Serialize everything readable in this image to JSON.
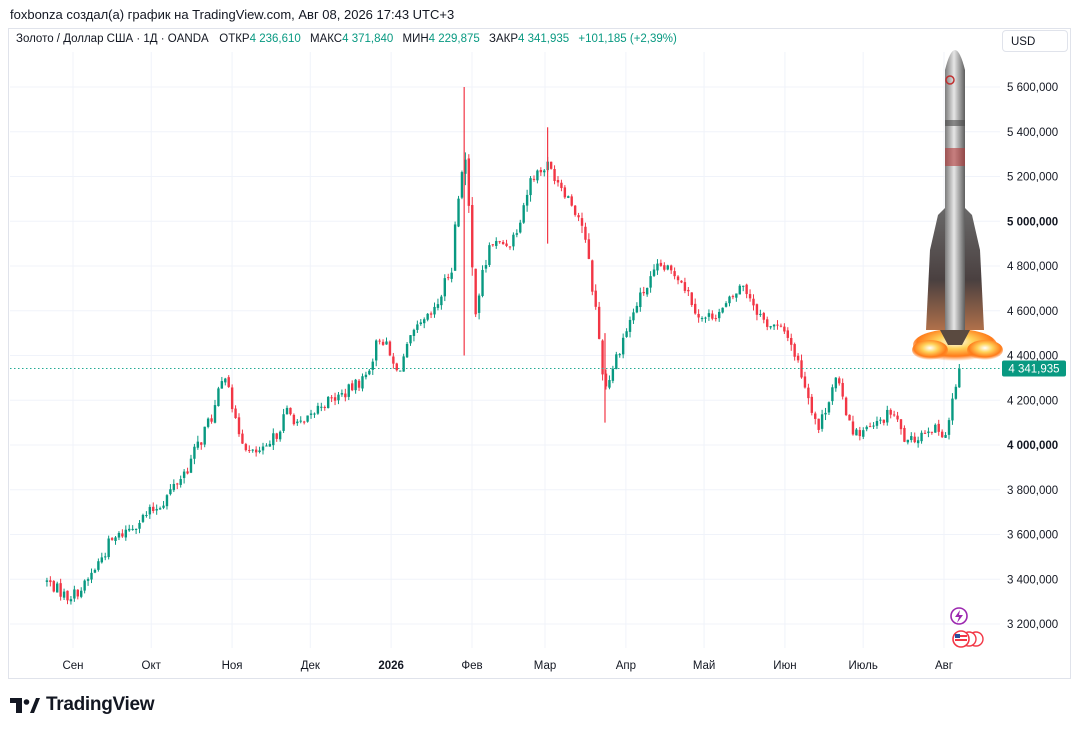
{
  "header": {
    "caption": "foxbonza создал(а) график на TradingView.com, Авг 08, 2026 17:43 UTC+3"
  },
  "legend": {
    "symbol": "Золото / Доллар США · 1Д · OANDA",
    "open_label": "ОТКР",
    "open": "4 236,610",
    "high_label": "МАКС",
    "high": "4 371,840",
    "low_label": "МИН",
    "low": "4 229,875",
    "close_label": "ЗАКР",
    "close": "4 341,935",
    "change": "+101,185 (+2,39%)"
  },
  "currency": "USD",
  "last_price_label": "4 341,935",
  "footer": {
    "brand": "TradingView"
  },
  "colors": {
    "up": "#089981",
    "down": "#f23645",
    "grid": "#f0f3fa",
    "last_line": "#22ab94"
  },
  "chart_data": {
    "type": "candlestick",
    "y_axis": {
      "ticks": [
        3200000,
        3400000,
        3600000,
        3800000,
        4000000,
        4200000,
        4400000,
        4600000,
        4800000,
        5000000,
        5200000,
        5400000,
        5600000
      ],
      "tick_labels": [
        "3 200,000",
        "3 400,000",
        "3 600,000",
        "3 800,000",
        "4 000,000",
        "4 200,000",
        "4 400,000",
        "4 600,000",
        "4 800,000",
        "5 000,000",
        "5 200,000",
        "5 400,000",
        "5 600,000"
      ],
      "bold_ticks": [
        4000000,
        5000000
      ],
      "range": [
        3050000,
        5740000
      ]
    },
    "x_axis": {
      "labels": [
        "Сен",
        "Окт",
        "Ноя",
        "Дек",
        "2026",
        "Фев",
        "Мар",
        "Апр",
        "Май",
        "Июн",
        "Июль",
        "Авг"
      ],
      "bold_labels": [
        "2026"
      ]
    },
    "last_price": 4341935,
    "series_close_path": [
      [
        "2025-08-22",
        3390000
      ],
      [
        "2025-08-30",
        3320000
      ],
      [
        "2025-09-05",
        3360000
      ],
      [
        "2025-09-15",
        3560000
      ],
      [
        "2025-09-25",
        3650000
      ],
      [
        "2025-10-05",
        3740000
      ],
      [
        "2025-10-15",
        3900000
      ],
      [
        "2025-10-25",
        4150000
      ],
      [
        "2025-10-30",
        4350000
      ],
      [
        "2025-11-02",
        4100000
      ],
      [
        "2025-11-08",
        3960000
      ],
      [
        "2025-11-15",
        3980000
      ],
      [
        "2025-11-22",
        4150000
      ],
      [
        "2025-11-28",
        4080000
      ],
      [
        "2025-12-05",
        4180000
      ],
      [
        "2025-12-14",
        4230000
      ],
      [
        "2025-12-22",
        4300000
      ],
      [
        "2025-12-28",
        4500000
      ],
      [
        "2026-01-03",
        4320000
      ],
      [
        "2026-01-10",
        4500000
      ],
      [
        "2026-01-18",
        4600000
      ],
      [
        "2026-01-24",
        4800000
      ],
      [
        "2026-01-29",
        5350000
      ],
      [
        "2026-02-02",
        4600000
      ],
      [
        "2026-02-08",
        4900000
      ],
      [
        "2026-02-16",
        4900000
      ],
      [
        "2026-02-24",
        5200000
      ],
      [
        "2026-03-02",
        5250000
      ],
      [
        "2026-03-08",
        5150000
      ],
      [
        "2026-03-15",
        5000000
      ],
      [
        "2026-03-20",
        4650000
      ],
      [
        "2026-03-24",
        4250000
      ],
      [
        "2026-03-30",
        4450000
      ],
      [
        "2026-04-06",
        4650000
      ],
      [
        "2026-04-14",
        4800000
      ],
      [
        "2026-04-22",
        4750000
      ],
      [
        "2026-04-30",
        4560000
      ],
      [
        "2026-05-08",
        4600000
      ],
      [
        "2026-05-16",
        4720000
      ],
      [
        "2026-05-24",
        4550000
      ],
      [
        "2026-06-02",
        4500000
      ],
      [
        "2026-06-08",
        4300000
      ],
      [
        "2026-06-14",
        4070000
      ],
      [
        "2026-06-20",
        4300000
      ],
      [
        "2026-06-28",
        4050000
      ],
      [
        "2026-07-05",
        4080000
      ],
      [
        "2026-07-12",
        4150000
      ],
      [
        "2026-07-18",
        4000000
      ],
      [
        "2026-07-26",
        4080000
      ],
      [
        "2026-08-02",
        4050000
      ],
      [
        "2026-08-05",
        4240000
      ],
      [
        "2026-08-08",
        4341935
      ]
    ],
    "spikes": [
      [
        "2026-01-29",
        5600000,
        4400000
      ],
      [
        "2026-03-02",
        5420000,
        4900000
      ],
      [
        "2026-03-24",
        4500000,
        4100000
      ]
    ],
    "event_icons": [
      "lightning-icon",
      "us-flag-icon"
    ]
  }
}
